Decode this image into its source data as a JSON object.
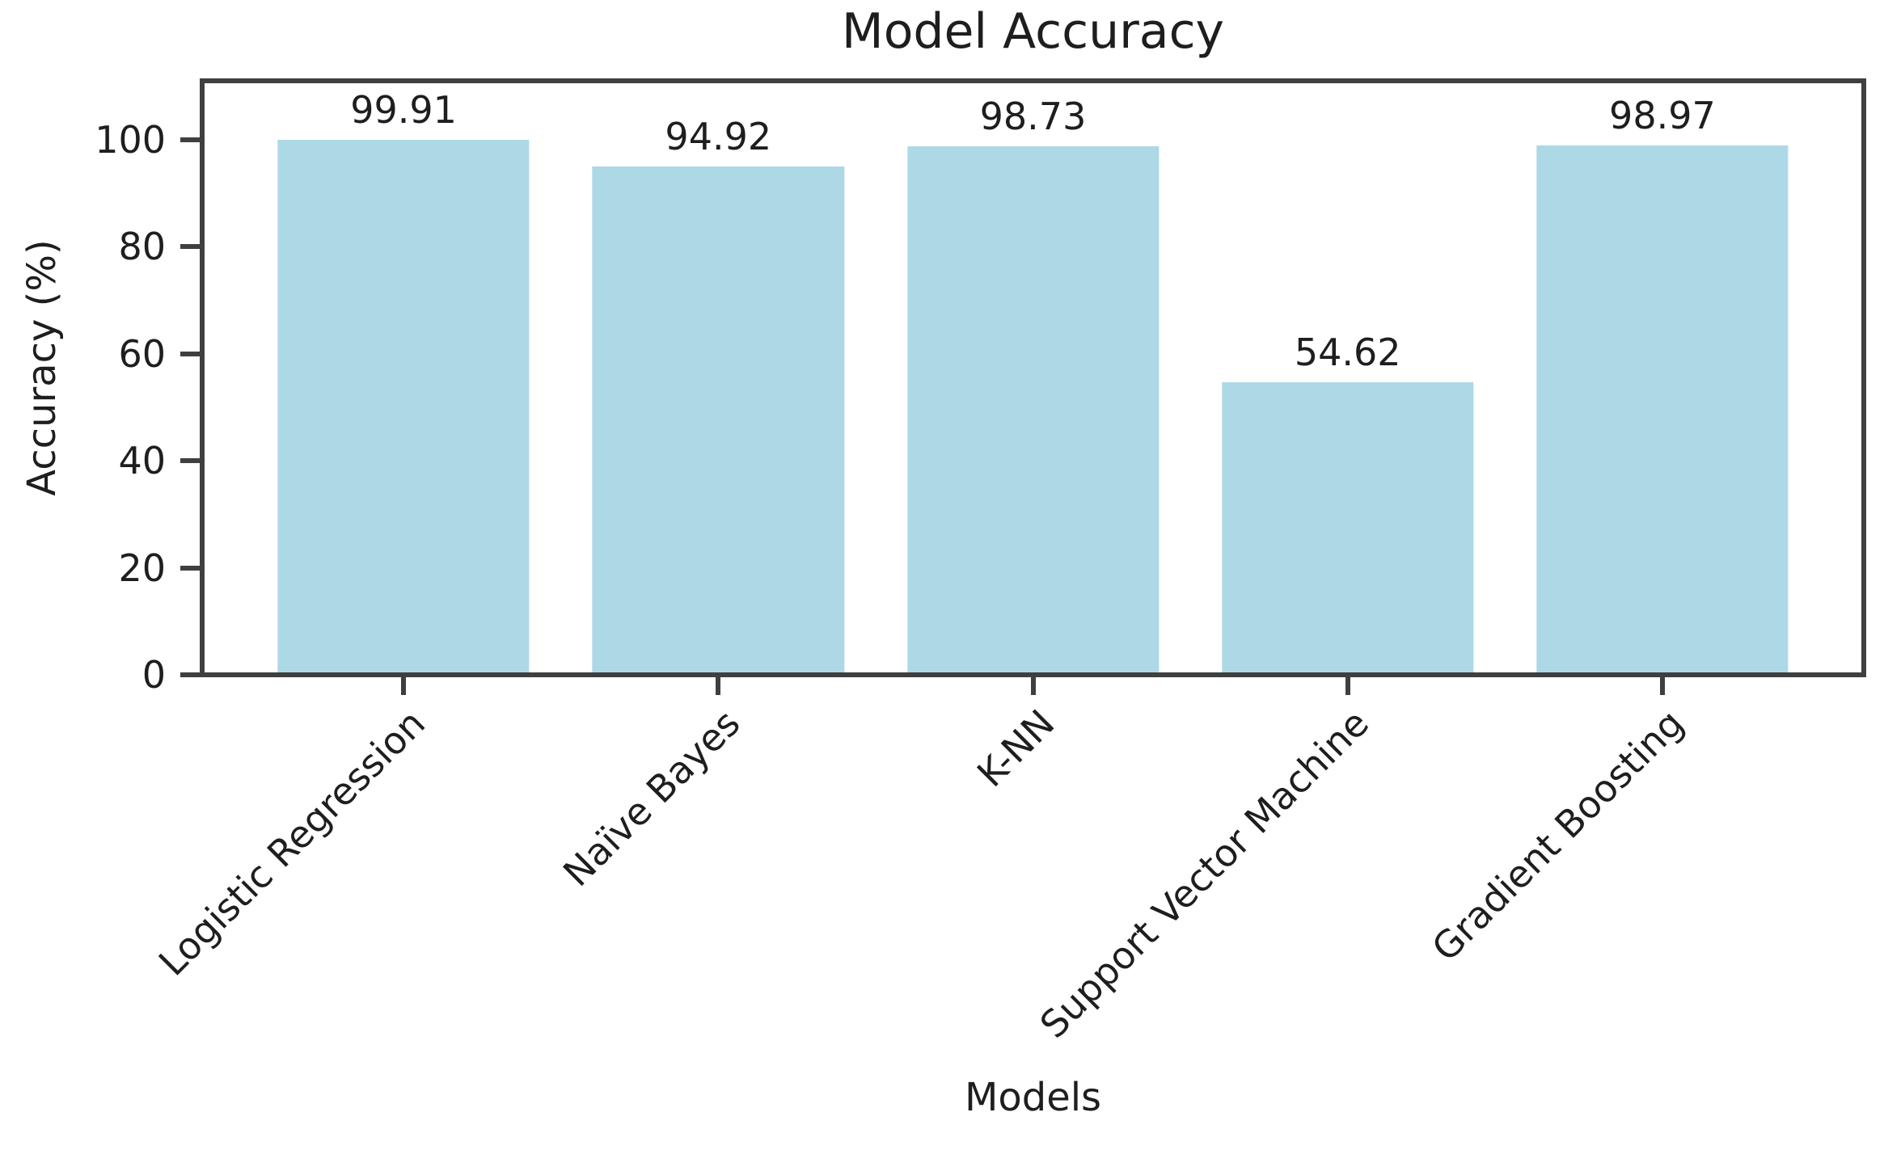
{
  "chart_data": {
    "type": "bar",
    "title": "Model Accuracy",
    "xlabel": "Models",
    "ylabel": "Accuracy (%)",
    "categories": [
      "Logistic Regression",
      "Naïve Bayes",
      "K-NN",
      "Support Vector Machine",
      "Gradient Boosting"
    ],
    "values": [
      99.91,
      94.92,
      98.73,
      54.62,
      98.97
    ],
    "value_labels": [
      "99.91",
      "94.92",
      "98.73",
      "54.62",
      "98.97"
    ],
    "yticks": [
      0,
      20,
      40,
      60,
      80,
      100
    ],
    "ylim": [
      0,
      111
    ],
    "x_tick_rotation_deg": 45,
    "grid": false,
    "legend": false,
    "bar_color": "#ADD8E6",
    "axis_color": "#3f3f3f",
    "text_color": "#1e1e1e",
    "bar_width_frac": 0.8,
    "x_pad_units": 0.64
  }
}
